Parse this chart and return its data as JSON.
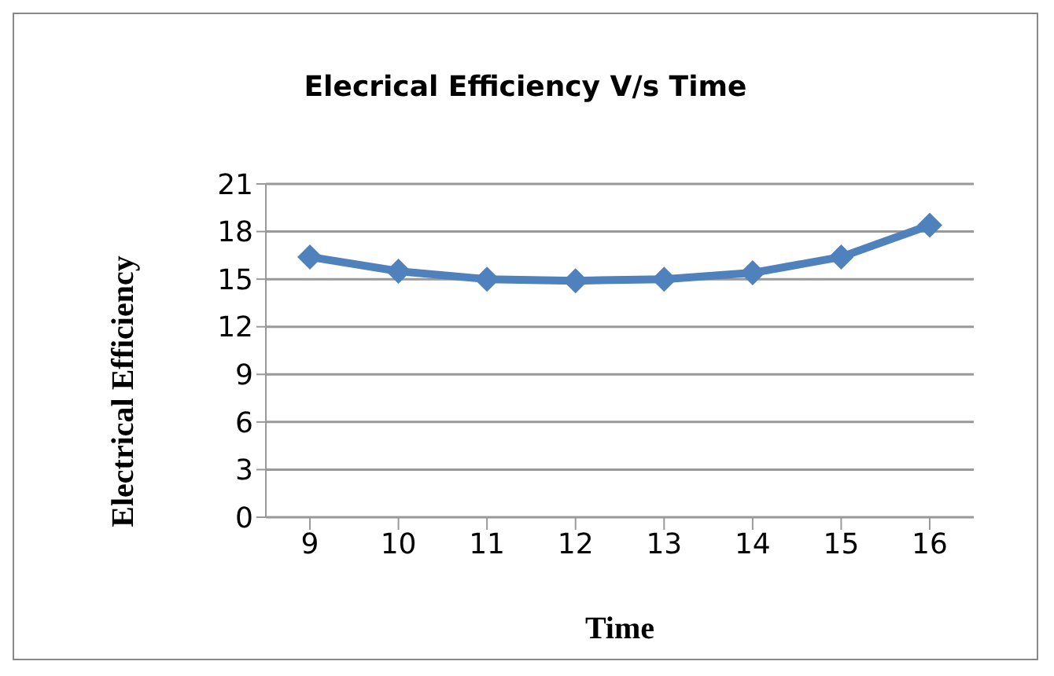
{
  "chart_data": {
    "type": "line",
    "title": "Elecrical Efficiency V/s Time",
    "xlabel": "Time",
    "ylabel": "Electrical Efficiency",
    "categories": [
      "9",
      "10",
      "11",
      "12",
      "13",
      "14",
      "15",
      "16"
    ],
    "series": [
      {
        "color": "#4f81bd",
        "values": [
          16.4,
          15.5,
          15.0,
          14.9,
          15.0,
          15.4,
          16.4,
          18.4
        ]
      }
    ],
    "ylim": [
      0,
      21
    ],
    "yticks": [
      0,
      3,
      6,
      9,
      12,
      15,
      18,
      21
    ],
    "grid": "y",
    "marker": "diamond",
    "legend": false
  }
}
